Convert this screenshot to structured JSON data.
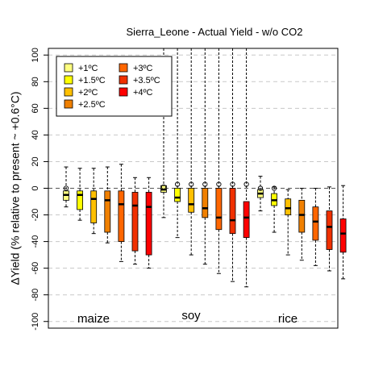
{
  "chart_data": {
    "type": "box",
    "title": "Sierra_Leone - Actual Yield - w/o CO2",
    "ylabel": "ΔYield (% relative to present ~ +0.6°C)",
    "ylim": [
      -105,
      105
    ],
    "yticks": [
      -100,
      -80,
      -60,
      -40,
      -20,
      0,
      20,
      40,
      60,
      80,
      100
    ],
    "grid": "horizontal dashed",
    "legend_position": "top-left",
    "legend": [
      {
        "label": "+1ºC",
        "color": "#FFFF80"
      },
      {
        "label": "+1.5ºC",
        "color": "#FFFF00"
      },
      {
        "label": "+2ºC",
        "color": "#FFC000"
      },
      {
        "label": "+2.5ºC",
        "color": "#F08000"
      },
      {
        "label": "+3ºC",
        "color": "#FF6600"
      },
      {
        "label": "+3.5ºC",
        "color": "#F03000"
      },
      {
        "label": "+4ºC",
        "color": "#FF0000"
      }
    ],
    "groups": [
      {
        "label": "maize",
        "boxes": [
          {
            "scenario": "+1ºC",
            "whislo": -14,
            "q1": -9,
            "median": -5,
            "q3": -2,
            "whishi": 16,
            "outliers": [
              0
            ]
          },
          {
            "scenario": "+1.5ºC",
            "whislo": -24,
            "q1": -16,
            "median": -5,
            "q3": -2,
            "whishi": 15,
            "outliers": []
          },
          {
            "scenario": "+2ºC",
            "whislo": -34,
            "q1": -26,
            "median": -8,
            "q3": -2,
            "whishi": 15,
            "outliers": []
          },
          {
            "scenario": "+2.5ºC",
            "whislo": -41,
            "q1": -33,
            "median": -9,
            "q3": -2,
            "whishi": 16,
            "outliers": []
          },
          {
            "scenario": "+3ºC",
            "whislo": -55,
            "q1": -40,
            "median": -12,
            "q3": -2,
            "whishi": 18,
            "outliers": []
          },
          {
            "scenario": "+3.5ºC",
            "whislo": -57,
            "q1": -47,
            "median": -13,
            "q3": -3,
            "whishi": 8,
            "outliers": []
          },
          {
            "scenario": "+4ºC",
            "whislo": -60,
            "q1": -50,
            "median": -14,
            "q3": -3,
            "whishi": 8,
            "outliers": []
          }
        ]
      },
      {
        "label": "soy",
        "boxes": [
          {
            "scenario": "+1ºC",
            "whislo": -22,
            "q1": -3,
            "median": -1,
            "q3": 2,
            "whishi": 105,
            "outliers": [
              1
            ]
          },
          {
            "scenario": "+1.5ºC",
            "whislo": -37,
            "q1": -10,
            "median": -7,
            "q3": 0,
            "whishi": 105,
            "outliers": [
              3
            ]
          },
          {
            "scenario": "+2ºC",
            "whislo": -50,
            "q1": -18,
            "median": -12,
            "q3": 0,
            "whishi": 105,
            "outliers": [
              3
            ]
          },
          {
            "scenario": "+2.5ºC",
            "whislo": -57,
            "q1": -22,
            "median": -15,
            "q3": 0,
            "whishi": 105,
            "outliers": [
              3
            ]
          },
          {
            "scenario": "+3ºC",
            "whislo": -64,
            "q1": -31,
            "median": -22,
            "q3": 0,
            "whishi": 105,
            "outliers": [
              3
            ]
          },
          {
            "scenario": "+3.5ºC",
            "whislo": -70,
            "q1": -34,
            "median": -24,
            "q3": 0,
            "whishi": 105,
            "outliers": [
              3
            ]
          },
          {
            "scenario": "+4ºC",
            "whislo": -74,
            "q1": -37,
            "median": -22,
            "q3": -10,
            "whishi": 105,
            "outliers": [
              3
            ]
          }
        ]
      },
      {
        "label": "rice",
        "boxes": [
          {
            "scenario": "+1ºC",
            "whislo": -17,
            "q1": -7,
            "median": -4,
            "q3": -1,
            "whishi": 9,
            "outliers": [
              0
            ]
          },
          {
            "scenario": "+1.5ºC",
            "whislo": -33,
            "q1": -13,
            "median": -9,
            "q3": -4,
            "whishi": 1,
            "outliers": [
              0
            ]
          },
          {
            "scenario": "+2ºC",
            "whislo": -50,
            "q1": -20,
            "median": -15,
            "q3": -8,
            "whishi": -1,
            "outliers": []
          },
          {
            "scenario": "+2.5ºC",
            "whislo": -54,
            "q1": -33,
            "median": -20,
            "q3": -9,
            "whishi": 0,
            "outliers": []
          },
          {
            "scenario": "+3ºC",
            "whislo": -58,
            "q1": -39,
            "median": -25,
            "q3": -14,
            "whishi": 0,
            "outliers": []
          },
          {
            "scenario": "+3.5ºC",
            "whislo": -62,
            "q1": -46,
            "median": -29,
            "q3": -17,
            "whishi": 1,
            "outliers": []
          },
          {
            "scenario": "+4ºC",
            "whislo": -68,
            "q1": -48,
            "median": -34,
            "q3": -23,
            "whishi": 2,
            "outliers": []
          }
        ]
      }
    ]
  }
}
